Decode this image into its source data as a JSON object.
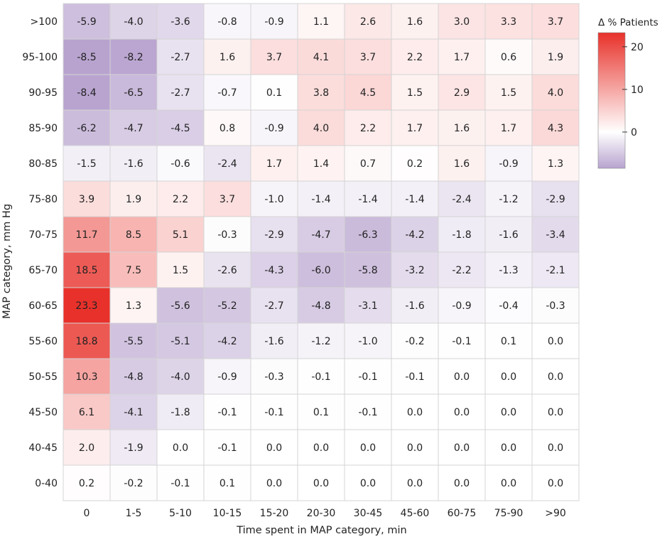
{
  "chart_data": {
    "type": "heatmap",
    "xlabel": "Time spent in MAP category, min",
    "ylabel": "MAP category, mm Hg",
    "x_categories": [
      "0",
      "1-5",
      "5-10",
      "10-15",
      "15-20",
      "20-30",
      "30-45",
      "45-60",
      "60-75",
      "75-90",
      ">90"
    ],
    "y_categories": [
      ">100",
      "95-100",
      "90-95",
      "85-90",
      "80-85",
      "75-80",
      "70-75",
      "65-70",
      "60-65",
      "55-60",
      "50-55",
      "45-50",
      "40-45",
      "0-40"
    ],
    "values": [
      [
        "-5.9",
        "-4.0",
        "-3.6",
        "-0.8",
        "-0.9",
        "1.1",
        "2.6",
        "1.6",
        "3.0",
        "3.3",
        "3.7"
      ],
      [
        "-8.5",
        "-8.2",
        "-2.7",
        "1.6",
        "3.7",
        "4.1",
        "3.7",
        "2.2",
        "1.7",
        "0.6",
        "1.9"
      ],
      [
        "-8.4",
        "-6.5",
        "-2.7",
        "-0.7",
        "0.1",
        "3.8",
        "4.5",
        "1.5",
        "2.9",
        "1.5",
        "4.0"
      ],
      [
        "-6.2",
        "-4.7",
        "-4.5",
        "0.8",
        "-0.9",
        "4.0",
        "2.2",
        "1.7",
        "1.6",
        "1.7",
        "4.3"
      ],
      [
        "-1.5",
        "-1.6",
        "-0.6",
        "-2.4",
        "1.7",
        "1.4",
        "0.7",
        "0.2",
        "1.6",
        "-0.9",
        "1.3"
      ],
      [
        "3.9",
        "1.9",
        "2.2",
        "3.7",
        "-1.0",
        "-1.4",
        "-1.4",
        "-1.4",
        "-2.4",
        "-1.2",
        "-2.9"
      ],
      [
        "11.7",
        "8.5",
        "5.1",
        "-0.3",
        "-2.9",
        "-4.7",
        "-6.3",
        "-4.2",
        "-1.8",
        "-1.6",
        "-3.4"
      ],
      [
        "18.5",
        "7.5",
        "1.5",
        "-2.6",
        "-4.3",
        "-6.0",
        "-5.8",
        "-3.2",
        "-2.2",
        "-1.3",
        "-2.1"
      ],
      [
        "23.3",
        "1.3",
        "-5.6",
        "-5.2",
        "-2.7",
        "-4.8",
        "-3.1",
        "-1.6",
        "-0.9",
        "-0.4",
        "-0.3"
      ],
      [
        "18.8",
        "-5.5",
        "-5.1",
        "-4.2",
        "-1.6",
        "-1.2",
        "-1.0",
        "-0.2",
        "-0.1",
        "0.1",
        "0.0"
      ],
      [
        "10.3",
        "-4.8",
        "-4.0",
        "-0.9",
        "-0.3",
        "-0.1",
        "-0.1",
        "-0.1",
        "0.0",
        "0.0",
        "0.0"
      ],
      [
        "6.1",
        "-4.1",
        "-1.8",
        "-0.1",
        "-0.1",
        "0.1",
        "-0.1",
        "0.0",
        "0.0",
        "0.0",
        "0.0"
      ],
      [
        "2.0",
        "-1.9",
        "0.0",
        "-0.1",
        "0.0",
        "0.0",
        "0.0",
        "0.0",
        "0.0",
        "0.0",
        "0.0"
      ],
      [
        "0.2",
        "-0.2",
        "-0.1",
        "0.1",
        "0.0",
        "0.0",
        "0.0",
        "0.0",
        "0.0",
        "0.0",
        "0.0"
      ]
    ],
    "colorbar": {
      "title": "Δ % Patients",
      "ticks": [
        "20",
        "10",
        "0"
      ],
      "range": [
        -8.5,
        23.3
      ],
      "color_max": "#e8312a",
      "color_mid": "#ffffff",
      "color_min": "#b8a3cf"
    },
    "grid": true
  }
}
